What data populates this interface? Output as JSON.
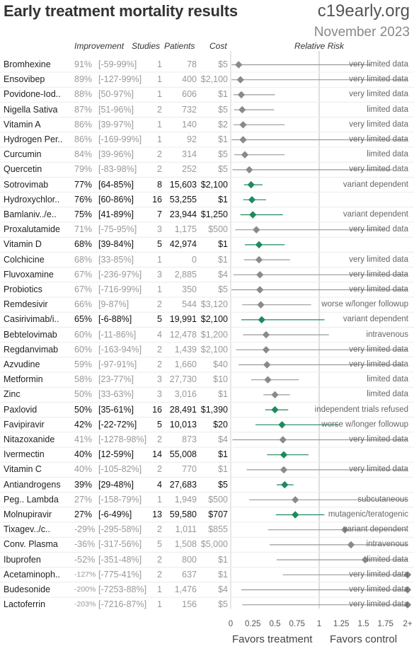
{
  "title": "Early treatment mortality results",
  "brand": "c19early.org",
  "date": "November 2023",
  "headers": {
    "improvement": "Improvement",
    "studies": "Studies",
    "patients": "Patients",
    "cost": "Cost",
    "relative_risk": "Relative Risk"
  },
  "footer": {
    "left": "Favors treatment",
    "right": "Favors control"
  },
  "colors": {
    "significant": "#1f8a5e",
    "nonsignificant": "#8a8a8a",
    "line": "#999999"
  },
  "chart_data": {
    "type": "forest",
    "x_axis": {
      "min": 0,
      "max": 2,
      "ticks": [
        0,
        0.25,
        0.5,
        0.75,
        1,
        1.25,
        1.5,
        1.75,
        2
      ],
      "tick_labels": [
        "0",
        "0.25",
        "0.5",
        "0.75",
        "1",
        "1.25",
        "1.5",
        "1.75",
        "2+"
      ],
      "reference_line": 1
    },
    "rows": [
      {
        "name": "Bromhexine",
        "improvement": "91%",
        "ci": "[-59-99%]",
        "studies": "1",
        "patients": "78",
        "cost": "$5",
        "note": "very limited data",
        "rr": 0.09,
        "lo": 0.01,
        "hi": 1.59,
        "sig": false
      },
      {
        "name": "Ensovibep",
        "improvement": "89%",
        "ci": "[-127-99%]",
        "studies": "1",
        "patients": "400",
        "cost": "$2,100",
        "note": "very limited data",
        "rr": 0.11,
        "lo": 0.01,
        "hi": 2.27,
        "sig": false
      },
      {
        "name": "Povidone-Iod..",
        "improvement": "88%",
        "ci": "[50-97%]",
        "studies": "1",
        "patients": "606",
        "cost": "$1",
        "note": "very limited data",
        "rr": 0.12,
        "lo": 0.03,
        "hi": 0.5,
        "sig": false
      },
      {
        "name": "Nigella Sativa",
        "improvement": "87%",
        "ci": "[51-96%]",
        "studies": "2",
        "patients": "732",
        "cost": "$5",
        "note": "limited data",
        "rr": 0.13,
        "lo": 0.04,
        "hi": 0.49,
        "sig": false
      },
      {
        "name": "Vitamin A",
        "improvement": "86%",
        "ci": "[39-97%]",
        "studies": "1",
        "patients": "140",
        "cost": "$2",
        "note": "very limited data",
        "rr": 0.14,
        "lo": 0.03,
        "hi": 0.61,
        "sig": false
      },
      {
        "name": "Hydrogen Per..",
        "improvement": "86%",
        "ci": "[-169-99%]",
        "studies": "1",
        "patients": "92",
        "cost": "$1",
        "note": "very limited data",
        "rr": 0.14,
        "lo": 0.01,
        "hi": 2.69,
        "sig": false
      },
      {
        "name": "Curcumin",
        "improvement": "84%",
        "ci": "[39-96%]",
        "studies": "2",
        "patients": "314",
        "cost": "$5",
        "note": "limited data",
        "rr": 0.16,
        "lo": 0.04,
        "hi": 0.61,
        "sig": false
      },
      {
        "name": "Quercetin",
        "improvement": "79%",
        "ci": "[-83-98%]",
        "studies": "2",
        "patients": "252",
        "cost": "$5",
        "note": "very limited data",
        "rr": 0.21,
        "lo": 0.02,
        "hi": 1.83,
        "sig": false
      },
      {
        "name": "Sotrovimab",
        "improvement": "77%",
        "ci": "[64-85%]",
        "studies": "8",
        "patients": "15,603",
        "cost": "$2,100",
        "note": "variant dependent",
        "rr": 0.23,
        "lo": 0.15,
        "hi": 0.36,
        "sig": true
      },
      {
        "name": "Hydroxychlor..",
        "improvement": "76%",
        "ci": "[60-86%]",
        "studies": "16",
        "patients": "53,255",
        "cost": "$1",
        "note": "",
        "rr": 0.24,
        "lo": 0.14,
        "hi": 0.4,
        "sig": true
      },
      {
        "name": "Bamlaniv../e..",
        "improvement": "75%",
        "ci": "[41-89%]",
        "studies": "7",
        "patients": "23,944",
        "cost": "$1,250",
        "note": "variant dependent",
        "rr": 0.25,
        "lo": 0.11,
        "hi": 0.59,
        "sig": true
      },
      {
        "name": "Proxalutamide",
        "improvement": "71%",
        "ci": "[-75-95%]",
        "studies": "3",
        "patients": "1,175",
        "cost": "$500",
        "note": "very limited data",
        "rr": 0.29,
        "lo": 0.05,
        "hi": 1.75,
        "sig": false
      },
      {
        "name": "Vitamin D",
        "improvement": "68%",
        "ci": "[39-84%]",
        "studies": "5",
        "patients": "42,974",
        "cost": "$1",
        "note": "",
        "rr": 0.32,
        "lo": 0.16,
        "hi": 0.61,
        "sig": true
      },
      {
        "name": "Colchicine",
        "improvement": "68%",
        "ci": "[33-85%]",
        "studies": "1",
        "patients": "0",
        "cost": "$1",
        "note": "very limited data",
        "rr": 0.32,
        "lo": 0.15,
        "hi": 0.67,
        "sig": false
      },
      {
        "name": "Fluvoxamine",
        "improvement": "67%",
        "ci": "[-236-97%]",
        "studies": "3",
        "patients": "2,885",
        "cost": "$4",
        "note": "very limited data",
        "rr": 0.33,
        "lo": 0.03,
        "hi": 2.0,
        "sig": false
      },
      {
        "name": "Probiotics",
        "improvement": "67%",
        "ci": "[-716-99%]",
        "studies": "1",
        "patients": "350",
        "cost": "$5",
        "note": "very limited data",
        "rr": 0.33,
        "lo": 0.01,
        "hi": 2.0,
        "sig": false
      },
      {
        "name": "Remdesivir",
        "improvement": "66%",
        "ci": "[9-87%]",
        "studies": "2",
        "patients": "544",
        "cost": "$3,120",
        "note": "worse w/longer followup",
        "rr": 0.34,
        "lo": 0.13,
        "hi": 0.91,
        "sig": false
      },
      {
        "name": "Casirivimab/i..",
        "improvement": "65%",
        "ci": "[-6-88%]",
        "studies": "5",
        "patients": "19,991",
        "cost": "$2,100",
        "note": "variant dependent",
        "rr": 0.35,
        "lo": 0.12,
        "hi": 1.06,
        "sig": true
      },
      {
        "name": "Bebtelovimab",
        "improvement": "60%",
        "ci": "[-11-86%]",
        "studies": "4",
        "patients": "12,478",
        "cost": "$1,200",
        "note": "intravenous",
        "rr": 0.4,
        "lo": 0.14,
        "hi": 1.11,
        "sig": false
      },
      {
        "name": "Regdanvimab",
        "improvement": "60%",
        "ci": "[-163-94%]",
        "studies": "2",
        "patients": "1,439",
        "cost": "$2,100",
        "note": "very limited data",
        "rr": 0.4,
        "lo": 0.06,
        "hi": 2.0,
        "sig": false
      },
      {
        "name": "Azvudine",
        "improvement": "59%",
        "ci": "[-97-91%]",
        "studies": "2",
        "patients": "1,660",
        "cost": "$40",
        "note": "very limited data",
        "rr": 0.41,
        "lo": 0.09,
        "hi": 1.97,
        "sig": false
      },
      {
        "name": "Metformin",
        "improvement": "58%",
        "ci": "[23-77%]",
        "studies": "3",
        "patients": "27,730",
        "cost": "$10",
        "note": "limited data",
        "rr": 0.42,
        "lo": 0.23,
        "hi": 0.77,
        "sig": false
      },
      {
        "name": "Zinc",
        "improvement": "50%",
        "ci": "[33-63%]",
        "studies": "3",
        "patients": "3,016",
        "cost": "$1",
        "note": "limited data",
        "rr": 0.5,
        "lo": 0.37,
        "hi": 0.67,
        "sig": false
      },
      {
        "name": "Paxlovid",
        "improvement": "50%",
        "ci": "[35-61%]",
        "studies": "16",
        "patients": "28,491",
        "cost": "$1,390",
        "note": "independent trials refused",
        "rr": 0.5,
        "lo": 0.39,
        "hi": 0.65,
        "sig": true
      },
      {
        "name": "Favipiravir",
        "improvement": "42%",
        "ci": "[-22-72%]",
        "studies": "5",
        "patients": "10,013",
        "cost": "$20",
        "note": "worse w/longer followup",
        "rr": 0.58,
        "lo": 0.28,
        "hi": 1.22,
        "sig": true
      },
      {
        "name": "Nitazoxanide",
        "improvement": "41%",
        "ci": "[-1278-98%]",
        "studies": "2",
        "patients": "873",
        "cost": "$4",
        "note": "very limited data",
        "rr": 0.59,
        "lo": 0.02,
        "hi": 2.0,
        "sig": false
      },
      {
        "name": "Ivermectin",
        "improvement": "40%",
        "ci": "[12-59%]",
        "studies": "14",
        "patients": "55,008",
        "cost": "$1",
        "note": "",
        "rr": 0.6,
        "lo": 0.41,
        "hi": 0.88,
        "sig": true
      },
      {
        "name": "Vitamin C",
        "improvement": "40%",
        "ci": "[-105-82%]",
        "studies": "2",
        "patients": "770",
        "cost": "$1",
        "note": "very limited data",
        "rr": 0.6,
        "lo": 0.18,
        "hi": 2.0,
        "sig": false
      },
      {
        "name": "Antiandrogens",
        "improvement": "39%",
        "ci": "[29-48%]",
        "studies": "4",
        "patients": "27,683",
        "cost": "$5",
        "note": "",
        "rr": 0.61,
        "lo": 0.52,
        "hi": 0.71,
        "sig": true
      },
      {
        "name": "Peg.. Lambda",
        "improvement": "27%",
        "ci": "[-158-79%]",
        "studies": "1",
        "patients": "1,949",
        "cost": "$500",
        "note": "subcutaneous",
        "rr": 0.73,
        "lo": 0.21,
        "hi": 2.0,
        "sig": false
      },
      {
        "name": "Molnupiravir",
        "improvement": "27%",
        "ci": "[-6-49%]",
        "studies": "13",
        "patients": "59,580",
        "cost": "$707",
        "note": "mutagenic/teratogenic",
        "rr": 0.73,
        "lo": 0.51,
        "hi": 1.06,
        "sig": true
      },
      {
        "name": "Tixagev../c..",
        "improvement": "-29%",
        "ci": "[-295-58%]",
        "studies": "2",
        "patients": "1,011",
        "cost": "$855",
        "note": "variant dependent",
        "rr": 1.29,
        "lo": 0.42,
        "hi": 2.0,
        "sig": false
      },
      {
        "name": "Conv. Plasma",
        "improvement": "-36%",
        "ci": "[-317-56%]",
        "studies": "5",
        "patients": "1,508",
        "cost": "$5,000",
        "note": "intravenous",
        "rr": 1.36,
        "lo": 0.44,
        "hi": 2.0,
        "sig": false
      },
      {
        "name": "Ibuprofen",
        "improvement": "-52%",
        "ci": "[-351-48%]",
        "studies": "2",
        "patients": "800",
        "cost": "$1",
        "note": "limited data",
        "rr": 1.52,
        "lo": 0.52,
        "hi": 2.0,
        "sig": false
      },
      {
        "name": "Acetaminoph..",
        "improvement": "-127%",
        "ci": "[-775-41%]",
        "studies": "2",
        "patients": "637",
        "cost": "$1",
        "note": "very limited data",
        "rr": 2.0,
        "lo": 0.59,
        "hi": 2.0,
        "sig": false
      },
      {
        "name": "Budesonide",
        "improvement": "-200%",
        "ci": "[-7253-88%]",
        "studies": "1",
        "patients": "1,476",
        "cost": "$4",
        "note": "very limited data",
        "rr": 2.0,
        "lo": 0.12,
        "hi": 2.0,
        "sig": false
      },
      {
        "name": "Lactoferrin",
        "improvement": "-203%",
        "ci": "[-7216-87%]",
        "studies": "1",
        "patients": "156",
        "cost": "$5",
        "note": "very limited data",
        "rr": 2.0,
        "lo": 0.13,
        "hi": 2.0,
        "sig": false
      }
    ]
  }
}
